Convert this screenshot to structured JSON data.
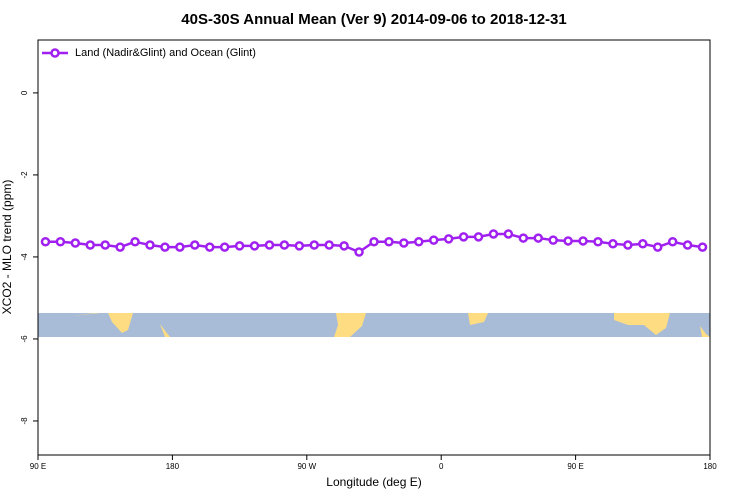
{
  "chart_data": {
    "type": "line",
    "title": "40S-30S Annual Mean (Ver 9)   2014-09-06 to 2018-12-31",
    "x_label": "Longitude (deg E)",
    "y_label": "XCO2 - MLO trend (ppm)",
    "x": [
      95,
      105,
      115,
      125,
      135,
      145,
      155,
      165,
      175,
      185,
      195,
      205,
      215,
      225,
      235,
      245,
      255,
      265,
      275,
      285,
      295,
      305,
      315,
      325,
      335,
      345,
      355,
      365,
      375,
      385,
      395,
      405,
      415,
      425,
      435,
      445,
      455,
      465,
      475,
      485,
      495,
      505,
      515,
      525,
      535
    ],
    "series": [
      {
        "name": "Land (Nadir&Glint) and Ocean (Glint)",
        "color": "#a020f0",
        "values": [
          -3.63,
          -3.63,
          -3.66,
          -3.71,
          -3.71,
          -3.76,
          -3.63,
          -3.71,
          -3.76,
          -3.76,
          -3.71,
          -3.76,
          -3.76,
          -3.73,
          -3.73,
          -3.71,
          -3.71,
          -3.73,
          -3.71,
          -3.71,
          -3.73,
          -3.88,
          -3.63,
          -3.63,
          -3.66,
          -3.63,
          -3.59,
          -3.56,
          -3.51,
          -3.51,
          -3.44,
          -3.44,
          -3.54,
          -3.54,
          -3.59,
          -3.61,
          -3.61,
          -3.63,
          -3.68,
          -3.71,
          -3.68,
          -3.76,
          -3.63,
          -3.71,
          -3.76
        ]
      }
    ],
    "xlim": [
      90,
      540
    ],
    "ylim": [
      -8.83,
      1.29
    ],
    "xticks": [
      {
        "value": 90,
        "label": "90 E"
      },
      180,
      {
        "value": 270,
        "label": "90 W"
      },
      {
        "value": 360,
        "label": "0"
      },
      {
        "value": 450,
        "label": "90 E"
      },
      {
        "value": 540,
        "label": "180"
      }
    ],
    "yticks": [
      0,
      -2,
      -4,
      -6,
      -8
    ],
    "legend": "upper left"
  }
}
